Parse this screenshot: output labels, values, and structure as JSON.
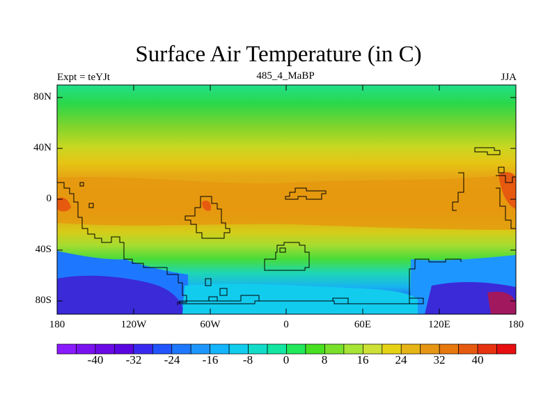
{
  "map": {
    "title": "Surface Air Temperature (in C)",
    "experiment": "Expt = teYJt",
    "subtitle": "485_4_MaBP",
    "season": "JJA",
    "lat_ticks": [
      "80N",
      "40N",
      "0",
      "40S",
      "80S"
    ],
    "lon_ticks": [
      "180",
      "120W",
      "60W",
      "0",
      "60E",
      "120E",
      "180"
    ]
  },
  "colorbar": {
    "labels": [
      "-40",
      "-32",
      "-24",
      "-16",
      "-8",
      "0",
      "8",
      "16",
      "24",
      "32",
      "40"
    ],
    "colors": [
      "#8a1aff",
      "#7a12f0",
      "#6a0ae6",
      "#5a06e0",
      "#3a2af0",
      "#2255ff",
      "#1e78ff",
      "#1e96ff",
      "#14b4ff",
      "#12ccee",
      "#12dcc8",
      "#12e6a0",
      "#22e85a",
      "#48e020",
      "#78e02a",
      "#a6e436",
      "#cce036",
      "#e6d214",
      "#e6b416",
      "#e69614",
      "#e6780e",
      "#e65a10",
      "#e6320e",
      "#e60e0e"
    ]
  },
  "legend_colors": {
    "land_outline": "#000000",
    "frame": "#000000"
  }
}
